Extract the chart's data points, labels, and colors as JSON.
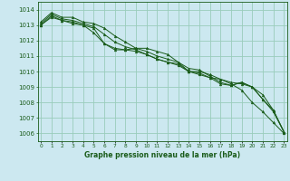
{
  "bg_color": "#cce8f0",
  "grid_color": "#99ccbb",
  "line_color": "#1a5c1a",
  "text_color": "#1a5c1a",
  "xlabel": "Graphe pression niveau de la mer (hPa)",
  "ylim": [
    1005.5,
    1014.5
  ],
  "xlim": [
    -0.3,
    23.3
  ],
  "yticks": [
    1006,
    1007,
    1008,
    1009,
    1010,
    1011,
    1012,
    1013,
    1014
  ],
  "xticks": [
    0,
    1,
    2,
    3,
    4,
    5,
    6,
    7,
    8,
    9,
    10,
    11,
    12,
    13,
    14,
    15,
    16,
    17,
    18,
    19,
    20,
    21,
    22,
    23
  ],
  "series": [
    [
      1013.0,
      1013.5,
      1013.3,
      1013.2,
      1013.0,
      1012.8,
      1011.8,
      1011.5,
      1011.4,
      1011.5,
      1011.5,
      1011.3,
      1011.1,
      1010.6,
      1010.0,
      1010.0,
      1009.8,
      1009.5,
      1009.3,
      1009.2,
      1009.0,
      1008.5,
      1007.5,
      1006.1
    ],
    [
      1013.1,
      1013.7,
      1013.4,
      1013.3,
      1013.1,
      1012.9,
      1012.4,
      1011.9,
      1011.6,
      1011.4,
      1011.1,
      1010.8,
      1010.6,
      1010.5,
      1010.0,
      1009.9,
      1009.6,
      1009.2,
      1009.1,
      1009.3,
      1009.0,
      1008.2,
      1007.5,
      1006.1
    ],
    [
      1013.2,
      1013.8,
      1013.5,
      1013.5,
      1013.2,
      1013.1,
      1012.8,
      1012.3,
      1011.9,
      1011.5,
      1011.3,
      1011.0,
      1010.8,
      1010.6,
      1010.2,
      1010.1,
      1009.7,
      1009.3,
      1009.1,
      1009.3,
      1009.0,
      1008.2,
      1007.4,
      1006.1
    ],
    [
      1013.0,
      1013.6,
      1013.3,
      1013.1,
      1013.0,
      1012.5,
      1011.8,
      1011.4,
      1011.4,
      1011.3,
      1011.1,
      1010.8,
      1010.6,
      1010.4,
      1010.0,
      1009.8,
      1009.6,
      1009.5,
      1009.2,
      1008.8,
      1008.0,
      1007.4,
      1006.7,
      1006.0
    ]
  ]
}
